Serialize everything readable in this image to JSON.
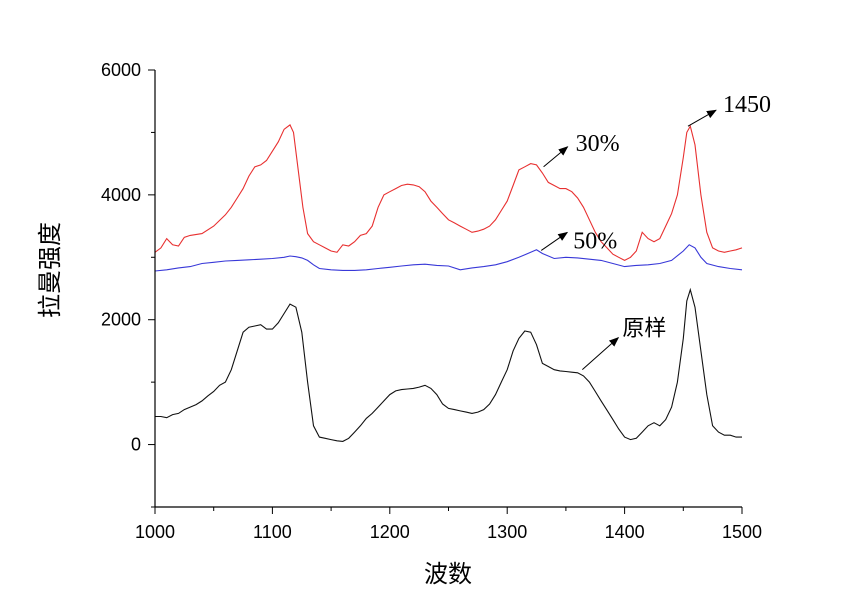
{
  "chart_data": {
    "type": "line",
    "title": "",
    "xlabel": "波数",
    "ylabel": "拉曼强度",
    "xlim": [
      1000,
      1500
    ],
    "ylim": [
      -1000,
      6000
    ],
    "xticks": [
      1000,
      1100,
      1200,
      1300,
      1400,
      1500
    ],
    "yticks": [
      0,
      2000,
      4000,
      6000
    ],
    "grid": false,
    "series": [
      {
        "name": "30%",
        "color": "#e83030",
        "x": [
          1000,
          1005,
          1010,
          1015,
          1020,
          1025,
          1030,
          1040,
          1050,
          1060,
          1065,
          1070,
          1075,
          1080,
          1085,
          1090,
          1095,
          1100,
          1105,
          1110,
          1115,
          1118,
          1122,
          1126,
          1130,
          1135,
          1140,
          1145,
          1150,
          1155,
          1160,
          1165,
          1170,
          1175,
          1180,
          1185,
          1190,
          1195,
          1200,
          1205,
          1210,
          1215,
          1220,
          1225,
          1230,
          1235,
          1240,
          1245,
          1250,
          1255,
          1260,
          1265,
          1270,
          1275,
          1280,
          1285,
          1290,
          1295,
          1300,
          1305,
          1310,
          1315,
          1320,
          1325,
          1330,
          1335,
          1340,
          1345,
          1350,
          1355,
          1360,
          1365,
          1370,
          1375,
          1380,
          1385,
          1390,
          1395,
          1400,
          1405,
          1410,
          1415,
          1420,
          1425,
          1430,
          1435,
          1440,
          1445,
          1450,
          1453,
          1456,
          1460,
          1465,
          1470,
          1475,
          1480,
          1485,
          1490,
          1495,
          1500
        ],
        "values": [
          3080,
          3150,
          3300,
          3200,
          3180,
          3320,
          3350,
          3380,
          3500,
          3680,
          3800,
          3950,
          4100,
          4300,
          4450,
          4480,
          4550,
          4700,
          4850,
          5050,
          5120,
          5000,
          4400,
          3800,
          3380,
          3250,
          3200,
          3150,
          3100,
          3080,
          3200,
          3180,
          3250,
          3350,
          3380,
          3500,
          3800,
          4000,
          4050,
          4100,
          4150,
          4170,
          4160,
          4130,
          4050,
          3900,
          3800,
          3700,
          3600,
          3550,
          3500,
          3450,
          3400,
          3420,
          3450,
          3500,
          3600,
          3750,
          3900,
          4150,
          4400,
          4450,
          4500,
          4480,
          4350,
          4200,
          4150,
          4100,
          4100,
          4050,
          3950,
          3800,
          3600,
          3400,
          3250,
          3150,
          3050,
          3000,
          2950,
          3000,
          3100,
          3400,
          3300,
          3250,
          3300,
          3500,
          3700,
          4000,
          4600,
          5000,
          5100,
          4800,
          4000,
          3400,
          3150,
          3100,
          3080,
          3100,
          3120,
          3150
        ]
      },
      {
        "name": "50%",
        "color": "#3838d8",
        "x": [
          1000,
          1010,
          1020,
          1030,
          1040,
          1050,
          1060,
          1070,
          1080,
          1090,
          1100,
          1110,
          1115,
          1120,
          1125,
          1130,
          1135,
          1140,
          1150,
          1160,
          1170,
          1180,
          1190,
          1200,
          1210,
          1220,
          1230,
          1240,
          1250,
          1260,
          1270,
          1280,
          1290,
          1300,
          1310,
          1320,
          1325,
          1330,
          1340,
          1350,
          1360,
          1370,
          1380,
          1390,
          1400,
          1410,
          1420,
          1430,
          1440,
          1450,
          1455,
          1460,
          1465,
          1470,
          1480,
          1490,
          1500
        ],
        "values": [
          2780,
          2800,
          2830,
          2850,
          2900,
          2920,
          2940,
          2950,
          2960,
          2970,
          2980,
          3000,
          3020,
          3010,
          2990,
          2950,
          2880,
          2820,
          2800,
          2790,
          2790,
          2800,
          2820,
          2840,
          2860,
          2880,
          2890,
          2870,
          2860,
          2800,
          2830,
          2850,
          2880,
          2930,
          3000,
          3080,
          3120,
          3060,
          2980,
          3000,
          2990,
          2970,
          2950,
          2900,
          2850,
          2870,
          2880,
          2900,
          2950,
          3100,
          3200,
          3150,
          3000,
          2900,
          2850,
          2820,
          2800
        ]
      },
      {
        "name": "原样",
        "color": "#111111",
        "x": [
          1000,
          1005,
          1010,
          1015,
          1020,
          1025,
          1030,
          1035,
          1040,
          1045,
          1050,
          1055,
          1060,
          1065,
          1070,
          1075,
          1080,
          1085,
          1090,
          1095,
          1100,
          1105,
          1110,
          1115,
          1120,
          1125,
          1130,
          1135,
          1140,
          1145,
          1150,
          1155,
          1160,
          1165,
          1170,
          1175,
          1180,
          1185,
          1190,
          1195,
          1200,
          1205,
          1210,
          1215,
          1220,
          1225,
          1230,
          1235,
          1240,
          1245,
          1250,
          1255,
          1260,
          1265,
          1270,
          1275,
          1280,
          1285,
          1290,
          1295,
          1300,
          1305,
          1310,
          1315,
          1320,
          1325,
          1330,
          1335,
          1340,
          1345,
          1350,
          1355,
          1360,
          1365,
          1370,
          1375,
          1380,
          1385,
          1390,
          1395,
          1400,
          1405,
          1410,
          1415,
          1420,
          1425,
          1430,
          1435,
          1440,
          1445,
          1450,
          1453,
          1456,
          1460,
          1465,
          1470,
          1475,
          1480,
          1485,
          1490,
          1495,
          1500
        ],
        "values": [
          450,
          450,
          430,
          480,
          500,
          560,
          600,
          640,
          700,
          780,
          850,
          950,
          1000,
          1200,
          1500,
          1800,
          1880,
          1900,
          1920,
          1850,
          1850,
          1950,
          2100,
          2250,
          2200,
          1800,
          1000,
          300,
          120,
          100,
          80,
          60,
          50,
          100,
          200,
          300,
          420,
          500,
          600,
          700,
          800,
          860,
          880,
          890,
          900,
          920,
          950,
          900,
          800,
          650,
          580,
          560,
          540,
          520,
          500,
          520,
          560,
          650,
          800,
          1000,
          1200,
          1500,
          1700,
          1820,
          1800,
          1600,
          1300,
          1250,
          1200,
          1180,
          1170,
          1160,
          1150,
          1100,
          1000,
          850,
          700,
          550,
          400,
          250,
          120,
          80,
          100,
          200,
          300,
          350,
          300,
          400,
          600,
          1000,
          1700,
          2300,
          2480,
          2200,
          1500,
          800,
          300,
          200,
          150,
          150,
          120,
          120
        ]
      }
    ],
    "annotations": [
      {
        "text": "1450",
        "x": 1454,
        "y": 5100
      },
      {
        "text": "30%",
        "x": 1331,
        "y": 4450
      },
      {
        "text": "50%",
        "x": 1329,
        "y": 3110
      },
      {
        "text": "原样",
        "x": 1364,
        "y": 1200
      }
    ]
  }
}
